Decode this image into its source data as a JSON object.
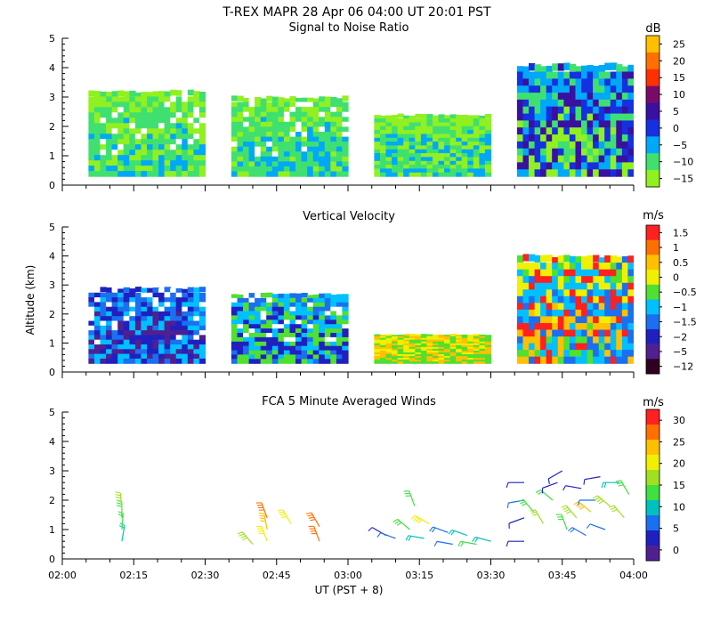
{
  "figure": {
    "title": "T-REX  MAPR 28 Apr 06  04:00 UT  20:01  PST",
    "xlabel": "UT  (PST + 8)",
    "ylabel": "Altitude (km)",
    "x_ticks": [
      "02:00",
      "02:15",
      "02:30",
      "02:45",
      "03:00",
      "03:15",
      "03:30",
      "03:45",
      "04:00"
    ],
    "y_ticks": [
      "0",
      "1",
      "2",
      "3",
      "4",
      "5"
    ]
  },
  "chart_data": [
    {
      "type": "heatmap",
      "title": "Signal to Noise Ratio",
      "unit": "dB",
      "xlim": [
        0,
        120
      ],
      "ylim": [
        0,
        5
      ],
      "xunit": "minutes after 02:00 UT",
      "colorbar": {
        "labels": [
          "25",
          "20",
          "15",
          "10",
          "5",
          "0",
          "−5",
          "−10",
          "−15"
        ],
        "colors": [
          "#ffc000",
          "#ff7000",
          "#ff3000",
          "#7a0a6a",
          "#3a10a0",
          "#1530e0",
          "#00a8f8",
          "#40e070",
          "#90f020"
        ]
      },
      "blocks": [
        {
          "x": [
            5.5,
            30
          ],
          "y": [
            0.3,
            3.2
          ],
          "palette": [
            "#90f020",
            "#90f020",
            "#90f020",
            "#40e070",
            "#40e070",
            "#00a8f8"
          ],
          "holes": true
        },
        {
          "x": [
            35.5,
            60
          ],
          "y": [
            0.3,
            3.0
          ],
          "palette": [
            "#90f020",
            "#90f020",
            "#40e070",
            "#40e070",
            "#00a8f8"
          ],
          "holes": true
        },
        {
          "x": [
            65.5,
            90
          ],
          "y": [
            0.3,
            2.4
          ],
          "palette": [
            "#90f020",
            "#90f020",
            "#40e070",
            "#00a8f8"
          ],
          "holes": false
        },
        {
          "x": [
            95.5,
            120
          ],
          "y": [
            0.3,
            4.1
          ],
          "palette": [
            "#00a8f8",
            "#00a8f8",
            "#40e070",
            "#1530e0",
            "#3a10a0",
            "#90f020"
          ],
          "holes": false
        }
      ]
    },
    {
      "type": "heatmap",
      "title": "Vertical Velocity",
      "unit": "m/s",
      "xlim": [
        0,
        120
      ],
      "ylim": [
        0,
        5
      ],
      "xunit": "minutes after 02:00 UT",
      "colorbar": {
        "labels": [
          "1.5",
          "1",
          "0.5",
          "0",
          "−0.5",
          "−1",
          "−1.5",
          "−2",
          "−5",
          "−12"
        ],
        "colors": [
          "#ff2020",
          "#ff7000",
          "#ffc000",
          "#f0f000",
          "#50e030",
          "#00c0ff",
          "#1a70f0",
          "#2020c0",
          "#502090",
          "#300020"
        ]
      },
      "blocks": [
        {
          "x": [
            5.5,
            30
          ],
          "y": [
            0.3,
            2.9
          ],
          "palette": [
            "#1a70f0",
            "#1a70f0",
            "#2020c0",
            "#00c0ff",
            "#502090"
          ],
          "holes": true
        },
        {
          "x": [
            35.5,
            60
          ],
          "y": [
            0.3,
            2.7
          ],
          "palette": [
            "#1a70f0",
            "#00c0ff",
            "#50e030",
            "#2020c0"
          ],
          "holes": true
        },
        {
          "x": [
            65.5,
            90
          ],
          "y": [
            0.3,
            1.3
          ],
          "palette": [
            "#50e030",
            "#f0f000",
            "#ffc000",
            "#50e030"
          ],
          "holes": false
        },
        {
          "x": [
            95.5,
            120
          ],
          "y": [
            0.3,
            4.0
          ],
          "palette": [
            "#50e030",
            "#f0f000",
            "#ff2020",
            "#00c0ff",
            "#1a70f0",
            "#ffc000"
          ],
          "holes": false
        }
      ]
    },
    {
      "type": "scatter",
      "title": "FCA 5 Minute Averaged Winds",
      "unit": "m/s",
      "xlim": [
        0,
        120
      ],
      "ylim": [
        0,
        5
      ],
      "xunit": "minutes after 02:00 UT",
      "colorbar": {
        "labels": [
          "30",
          "25",
          "20",
          "15",
          "10",
          "5",
          "0"
        ],
        "colors": [
          "#ff2020",
          "#ff7000",
          "#ffc000",
          "#f0f000",
          "#a0e020",
          "#40e040",
          "#00c0c0",
          "#1a70f0",
          "#2020c0",
          "#502090"
        ]
      },
      "barbs": [
        {
          "x": 12.5,
          "y": 0.6,
          "speed": 10,
          "dir": 170
        },
        {
          "x": 12.5,
          "y": 1.0,
          "speed": 12,
          "dir": 175
        },
        {
          "x": 12.5,
          "y": 1.4,
          "speed": 15,
          "dir": 180
        },
        {
          "x": 12.5,
          "y": 1.7,
          "speed": 16,
          "dir": 185
        },
        {
          "x": 40,
          "y": 0.5,
          "speed": 18,
          "dir": 220
        },
        {
          "x": 43,
          "y": 0.6,
          "speed": 20,
          "dir": 200
        },
        {
          "x": 43,
          "y": 1.0,
          "speed": 22,
          "dir": 190
        },
        {
          "x": 43,
          "y": 1.4,
          "speed": 25,
          "dir": 200
        },
        {
          "x": 48,
          "y": 1.2,
          "speed": 20,
          "dir": 210
        },
        {
          "x": 54,
          "y": 0.6,
          "speed": 25,
          "dir": 200
        },
        {
          "x": 54,
          "y": 1.1,
          "speed": 26,
          "dir": 210
        },
        {
          "x": 68,
          "y": 0.8,
          "speed": 5,
          "dir": 240
        },
        {
          "x": 70,
          "y": 0.7,
          "speed": 6,
          "dir": 250
        },
        {
          "x": 73,
          "y": 1.0,
          "speed": 14,
          "dir": 230
        },
        {
          "x": 74,
          "y": 1.8,
          "speed": 15,
          "dir": 200
        },
        {
          "x": 76,
          "y": 0.7,
          "speed": 9,
          "dir": 260
        },
        {
          "x": 77,
          "y": 1.2,
          "speed": 20,
          "dir": 240
        },
        {
          "x": 81,
          "y": 0.9,
          "speed": 8,
          "dir": 250
        },
        {
          "x": 82,
          "y": 0.5,
          "speed": 6,
          "dir": 260
        },
        {
          "x": 85,
          "y": 0.8,
          "speed": 10,
          "dir": 250
        },
        {
          "x": 87,
          "y": 0.5,
          "speed": 12,
          "dir": 260
        },
        {
          "x": 90,
          "y": 0.6,
          "speed": 11,
          "dir": 255
        },
        {
          "x": 97,
          "y": 0.6,
          "speed": 2,
          "dir": 270
        },
        {
          "x": 97,
          "y": 1.4,
          "speed": 3,
          "dir": 290
        },
        {
          "x": 97,
          "y": 2.0,
          "speed": 6,
          "dir": 280
        },
        {
          "x": 97,
          "y": 2.6,
          "speed": 5,
          "dir": 270
        },
        {
          "x": 99,
          "y": 1.6,
          "speed": 14,
          "dir": 220
        },
        {
          "x": 101,
          "y": 1.2,
          "speed": 16,
          "dir": 210
        },
        {
          "x": 103,
          "y": 2.0,
          "speed": 12,
          "dir": 230
        },
        {
          "x": 106,
          "y": 1.0,
          "speed": 14,
          "dir": 200
        },
        {
          "x": 108,
          "y": 1.4,
          "speed": 18,
          "dir": 220
        },
        {
          "x": 109,
          "y": 2.4,
          "speed": 4,
          "dir": 260
        },
        {
          "x": 110,
          "y": 0.8,
          "speed": 8,
          "dir": 240
        },
        {
          "x": 111,
          "y": 1.6,
          "speed": 22,
          "dir": 230
        },
        {
          "x": 112,
          "y": 2.0,
          "speed": 6,
          "dir": 270
        },
        {
          "x": 113,
          "y": 2.8,
          "speed": 4,
          "dir": 280
        },
        {
          "x": 114,
          "y": 1.0,
          "speed": 7,
          "dir": 250
        },
        {
          "x": 115,
          "y": 1.8,
          "speed": 18,
          "dir": 230
        },
        {
          "x": 117,
          "y": 2.6,
          "speed": 10,
          "dir": 270
        },
        {
          "x": 118,
          "y": 1.4,
          "speed": 16,
          "dir": 220
        },
        {
          "x": 119,
          "y": 2.2,
          "speed": 13,
          "dir": 210
        },
        {
          "x": 104,
          "y": 2.6,
          "speed": 3,
          "dir": 290
        },
        {
          "x": 105,
          "y": 3.0,
          "speed": 2,
          "dir": 300
        }
      ]
    }
  ]
}
